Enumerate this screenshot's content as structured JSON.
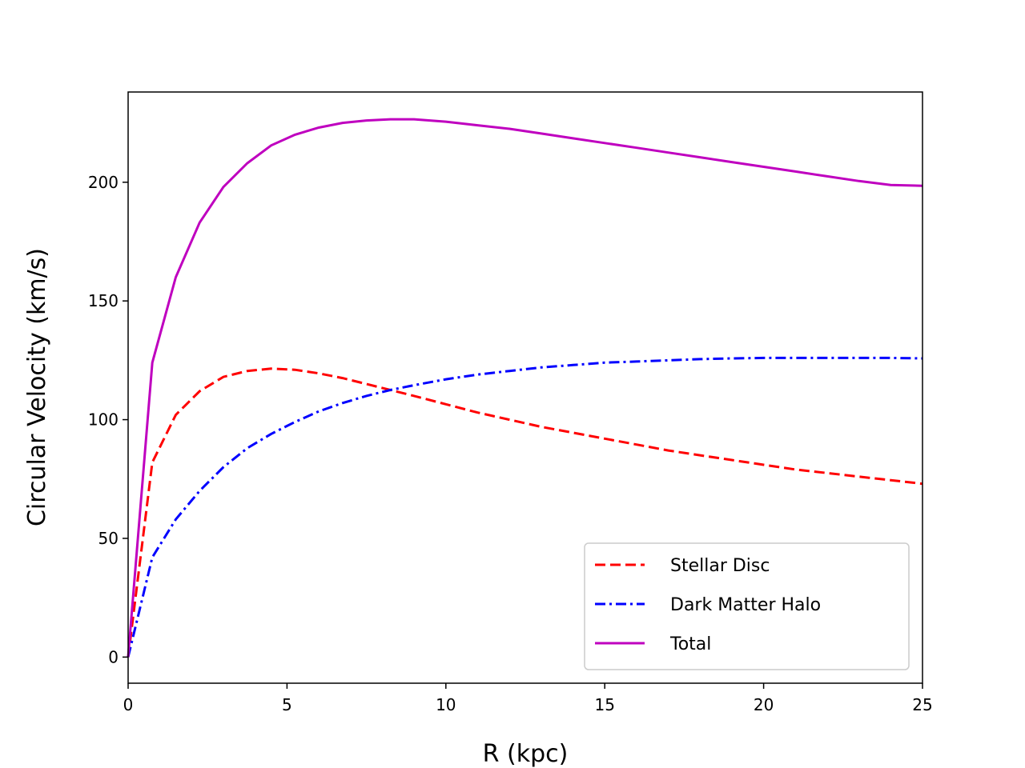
{
  "chart_data": {
    "type": "line",
    "title": "",
    "xlabel": "R (kpc)",
    "ylabel": "Circular Velocity (km/s)",
    "xlim": [
      0,
      25
    ],
    "ylim": [
      -11,
      238
    ],
    "xticks": [
      0,
      5,
      10,
      15,
      20,
      25
    ],
    "yticks": [
      0,
      50,
      100,
      150,
      200
    ],
    "grid": false,
    "legend_position": "lower-right",
    "series": [
      {
        "name": "Stellar Disc",
        "color": "#ff0000",
        "style": "dashed",
        "x": [
          0,
          0.76,
          1.5,
          2.25,
          3.0,
          3.75,
          4.5,
          5.25,
          6.0,
          6.75,
          7.5,
          8.25,
          9.0,
          10.0,
          11.0,
          12.0,
          13.0,
          14.0,
          15.0,
          16.0,
          17.0,
          18.0,
          19.0,
          20.0,
          21.0,
          22.0,
          23.0,
          24.0,
          25.0
        ],
        "y": [
          0,
          82,
          102,
          112,
          118,
          120.5,
          121.5,
          121,
          119.5,
          117.5,
          115,
          112.5,
          110,
          106.5,
          103,
          100,
          97,
          94.5,
          92,
          89.5,
          87,
          85,
          83,
          81,
          79,
          77.5,
          76,
          74.5,
          73
        ]
      },
      {
        "name": "Dark Matter Halo",
        "color": "#0000ff",
        "style": "dashdot",
        "x": [
          0,
          0.76,
          1.5,
          2.25,
          3.0,
          3.75,
          4.5,
          5.25,
          6.0,
          6.75,
          7.5,
          8.25,
          9.0,
          10.0,
          11.0,
          12.0,
          13.0,
          14.0,
          15.0,
          16.0,
          17.0,
          18.0,
          19.0,
          20.0,
          21.0,
          22.0,
          23.0,
          24.0,
          25.0
        ],
        "y": [
          0,
          42,
          58,
          70,
          80,
          88,
          94,
          99,
          103.5,
          107,
          110,
          112.5,
          114.5,
          117,
          119,
          120.5,
          122,
          123,
          124,
          124.5,
          125,
          125.5,
          125.8,
          126,
          126,
          126,
          126,
          126,
          125.8
        ]
      },
      {
        "name": "Total",
        "color": "#bf00bf",
        "style": "solid",
        "x": [
          0,
          0.76,
          1.5,
          2.25,
          3.0,
          3.75,
          4.5,
          5.25,
          6.0,
          6.75,
          7.5,
          8.25,
          9.0,
          10.0,
          11.0,
          12.0,
          13.0,
          14.0,
          15.0,
          16.0,
          17.0,
          18.0,
          19.0,
          20.0,
          21.0,
          22.0,
          23.0,
          24.0,
          25.0
        ],
        "y": [
          0,
          124,
          160,
          183,
          198,
          208,
          215.5,
          220,
          223,
          225,
          226,
          226.5,
          226.5,
          225.5,
          224,
          222.5,
          220.5,
          218.5,
          216.5,
          214.5,
          212.5,
          210.5,
          208.5,
          206.5,
          204.5,
          202.5,
          200.5,
          198.8,
          198.5
        ]
      }
    ]
  }
}
